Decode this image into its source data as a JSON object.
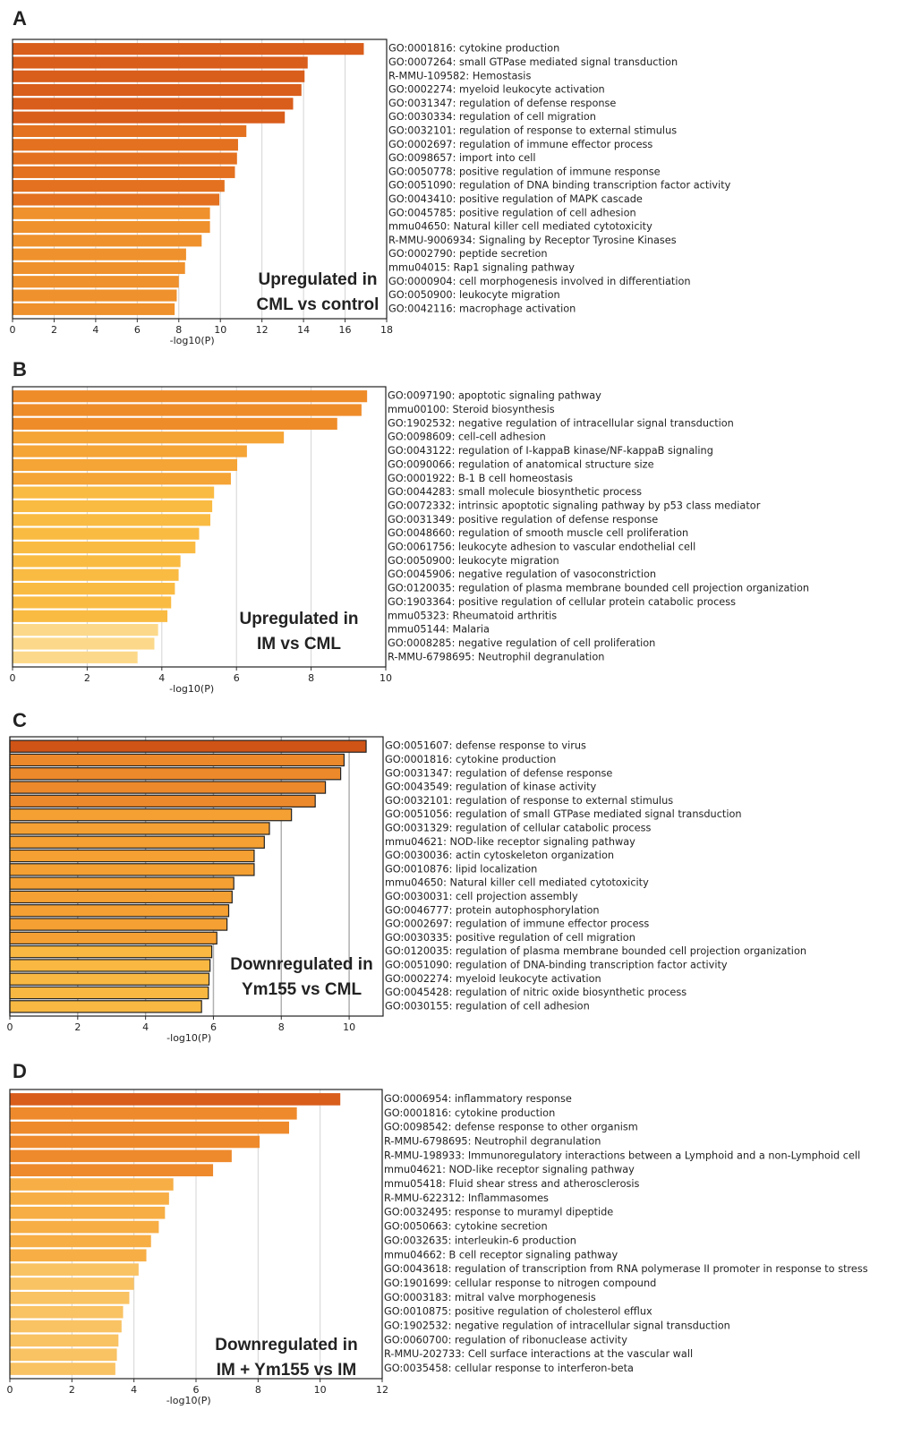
{
  "chart_data": [
    {
      "type": "bar",
      "orientation": "horizontal",
      "panel": "A",
      "annotation": [
        "Upregulated in",
        "CML vs control"
      ],
      "xlabel": "-log10(P)",
      "categories": [
        "GO:0001816: cytokine production",
        "GO:0007264: small GTPase mediated signal transduction",
        "R-MMU-109582: Hemostasis",
        "GO:0002274: myeloid leukocyte activation",
        "GO:0031347: regulation of defense response",
        "GO:0030334: regulation of cell migration",
        "GO:0032101: regulation of response to external stimulus",
        "GO:0002697: regulation of immune effector process",
        "GO:0098657: import into cell",
        "GO:0050778: positive regulation of immune response",
        "GO:0051090: regulation of DNA binding transcription factor activity",
        "GO:0043410: positive regulation of MAPK cascade",
        "GO:0045785: positive regulation of cell adhesion",
        "mmu04650: Natural killer cell mediated cytotoxicity",
        "R-MMU-9006934: Signaling by Receptor Tyrosine Kinases",
        "GO:0002790: peptide secretion",
        "mmu04015: Rap1 signaling pathway",
        "GO:0000904: cell morphogenesis involved in differentiation",
        "GO:0050900: leukocyte migration",
        "GO:0042116: macrophage activation"
      ],
      "values": [
        16.9,
        14.2,
        14.05,
        13.9,
        13.5,
        13.1,
        11.25,
        10.85,
        10.8,
        10.7,
        10.2,
        9.95,
        9.5,
        9.5,
        9.1,
        8.35,
        8.3,
        8.0,
        7.9,
        7.8
      ],
      "colors": [
        "#d95d1b",
        "#d95d1b",
        "#d95d1b",
        "#d95d1b",
        "#d95d1b",
        "#d95d1b",
        "#e3711f",
        "#e3711f",
        "#e3711f",
        "#e3711f",
        "#e3711f",
        "#e3711f",
        "#ef912c",
        "#ef912c",
        "#ef912c",
        "#ef912c",
        "#ef912c",
        "#ef912c",
        "#ef912c",
        "#ef912c"
      ],
      "xlim": [
        0,
        18
      ],
      "xticks": [
        0,
        2,
        4,
        6,
        8,
        10,
        12,
        14,
        16,
        18
      ],
      "grid": true
    },
    {
      "type": "bar",
      "orientation": "horizontal",
      "panel": "B",
      "annotation": [
        "Upregulated in",
        "IM vs CML"
      ],
      "xlabel": "-log10(P)",
      "categories": [
        "GO:0097190: apoptotic signaling pathway",
        "mmu00100: Steroid biosynthesis",
        "GO:1902532: negative regulation of intracellular signal transduction",
        "GO:0098609: cell-cell adhesion",
        "GO:0043122: regulation of I-kappaB kinase/NF-kappaB signaling",
        "GO:0090066: regulation of anatomical structure size",
        "GO:0001922: B-1 B cell homeostasis",
        "GO:0044283: small molecule biosynthetic process",
        "GO:0072332: intrinsic apoptotic signaling pathway by p53 class mediator",
        "GO:0031349: positive regulation of defense response",
        "GO:0048660: regulation of smooth muscle cell proliferation",
        "GO:0061756: leukocyte adhesion to vascular endothelial cell",
        "GO:0050900: leukocyte migration",
        "GO:0045906: negative regulation of vasoconstriction",
        "GO:0120035: regulation of plasma membrane bounded cell projection organization",
        "GO:1903364: positive regulation of cellular protein catabolic process",
        "mmu05323: Rheumatoid arthritis",
        "mmu05144: Malaria",
        "GO:0008285: negative regulation of cell proliferation",
        "R-MMU-6798695: Neutrophil degranulation"
      ],
      "values": [
        9.5,
        9.35,
        8.7,
        7.27,
        6.28,
        6.02,
        5.85,
        5.4,
        5.35,
        5.3,
        5.0,
        4.9,
        4.5,
        4.45,
        4.35,
        4.25,
        4.15,
        3.9,
        3.8,
        3.35
      ],
      "colors": [
        "#ef8c2a",
        "#ef8c2a",
        "#ef8c2a",
        "#f5a436",
        "#f5a436",
        "#f5a436",
        "#f5a436",
        "#fabb43",
        "#fabb43",
        "#fabb43",
        "#fabb43",
        "#fabb43",
        "#fabb43",
        "#fabb43",
        "#fabb43",
        "#fabb43",
        "#fabb43",
        "#fcd98a",
        "#fcd98a",
        "#fcd98a"
      ],
      "xlim": [
        0,
        10
      ],
      "xticks": [
        0,
        2,
        4,
        6,
        8,
        10
      ],
      "grid": true
    },
    {
      "type": "bar",
      "orientation": "horizontal",
      "panel": "C",
      "annotation": [
        "Downregulated in",
        "Ym155 vs CML"
      ],
      "xlabel": "-log10(P)",
      "categories": [
        "GO:0051607: defense response to virus",
        "GO:0001816: cytokine production",
        "GO:0031347: regulation of defense response",
        "GO:0043549: regulation of kinase activity",
        "GO:0032101: regulation of response to external stimulus",
        "GO:0051056: regulation of small GTPase mediated signal transduction",
        "GO:0031329: regulation of cellular catabolic process",
        "mmu04621: NOD-like receptor signaling pathway",
        "GO:0030036: actin cytoskeleton organization",
        "GO:0010876: lipid localization",
        "mmu04650: Natural killer cell mediated cytotoxicity",
        "GO:0030031: cell projection assembly",
        "GO:0046777: protein autophosphorylation",
        "GO:0002697: regulation of immune effector process",
        "GO:0030335: positive regulation of cell migration",
        "GO:0120035: regulation of plasma membrane bounded cell projection organization",
        "GO:0051090: regulation of DNA-binding transcription factor activity",
        "GO:0002274: myeloid leukocyte activation",
        "GO:0045428: regulation of nitric oxide biosynthetic process",
        "GO:0030155: regulation of cell adhesion"
      ],
      "values": [
        10.5,
        9.85,
        9.75,
        9.3,
        9.0,
        8.3,
        7.65,
        7.5,
        7.2,
        7.2,
        6.6,
        6.55,
        6.45,
        6.4,
        6.1,
        5.95,
        5.9,
        5.87,
        5.85,
        5.65
      ],
      "colors": [
        "#cf5416",
        "#ec892b",
        "#ec892b",
        "#ec892b",
        "#ec892b",
        "#f4a033",
        "#f4a033",
        "#f4a033",
        "#f4a033",
        "#f4a033",
        "#f4a033",
        "#f4a033",
        "#f4a033",
        "#f4a033",
        "#f4a033",
        "#f8b842",
        "#f8b842",
        "#f8b842",
        "#f8b842",
        "#f8b842"
      ],
      "xlim": [
        0,
        11
      ],
      "xticks": [
        0,
        2,
        4,
        6,
        8,
        10
      ],
      "grid": true
    },
    {
      "type": "bar",
      "orientation": "horizontal",
      "panel": "D",
      "annotation": [
        "Downregulated in",
        "IM  + Ym155 vs IM"
      ],
      "xlabel": "-log10(P)",
      "categories": [
        "GO:0006954: inflammatory response",
        "GO:0001816: cytokine production",
        "GO:0098542: defense response to other organism",
        "R-MMU-6798695: Neutrophil degranulation",
        "R-MMU-198933: Immunoregulatory interactions between a Lymphoid and a non-Lymphoid cell",
        "mmu04621: NOD-like receptor signaling pathway",
        "mmu05418: Fluid shear stress and atherosclerosis",
        "R-MMU-622312: Inflammasomes",
        "GO:0032495: response to muramyl dipeptide",
        "GO:0050663: cytokine secretion",
        "GO:0032635: interleukin-6 production",
        "mmu04662: B cell receptor signaling pathway",
        "GO:0043618: regulation of transcription from RNA polymerase II promoter in response to stress",
        "GO:1901699: cellular response to nitrogen compound",
        "GO:0003183: mitral valve morphogenesis",
        "GO:0010875: positive regulation of cholesterol efflux",
        "GO:1902532: negative regulation of intracellular signal transduction",
        "GO:0060700: regulation of ribonuclease activity",
        "R-MMU-202733: Cell surface interactions at the vascular wall",
        "GO:0035458: cellular response to interferon-beta"
      ],
      "values": [
        10.65,
        9.25,
        9.0,
        8.05,
        7.15,
        6.55,
        5.27,
        5.13,
        5.0,
        4.8,
        4.55,
        4.4,
        4.15,
        4.0,
        3.85,
        3.65,
        3.6,
        3.5,
        3.45,
        3.4
      ],
      "colors": [
        "#d95d1b",
        "#ee8a2c",
        "#ee8a2c",
        "#ee8a2c",
        "#ee8a2c",
        "#ee8a2c",
        "#f7ae45",
        "#f7ae45",
        "#f7ae45",
        "#f7ae45",
        "#f7ae45",
        "#f7ae45",
        "#f9c263",
        "#f9c263",
        "#f9c263",
        "#f9c263",
        "#f9c263",
        "#f9c263",
        "#f9c263",
        "#f9c263"
      ],
      "xlim": [
        0,
        12
      ],
      "xticks": [
        0,
        2,
        4,
        6,
        8,
        10,
        12
      ],
      "grid": true
    }
  ]
}
